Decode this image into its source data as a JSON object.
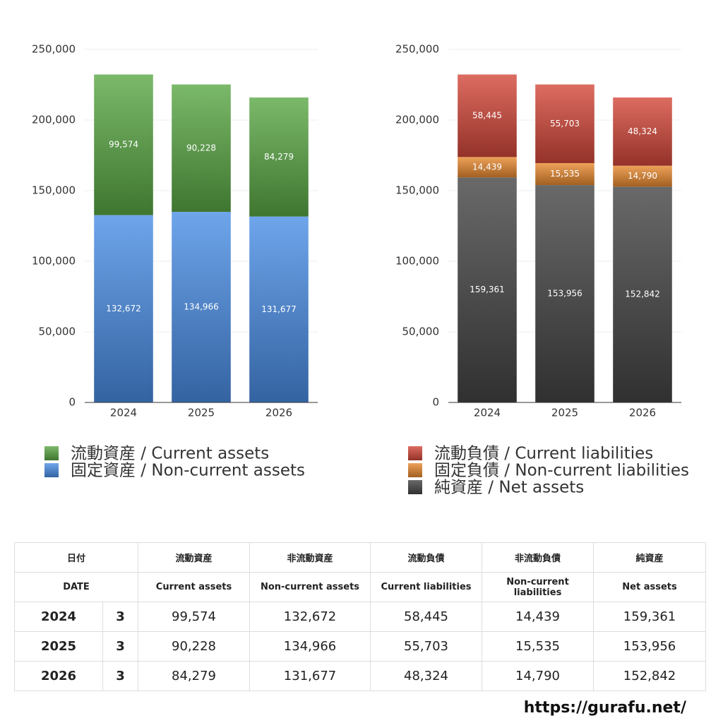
{
  "chart_data": [
    {
      "type": "bar",
      "stacked": true,
      "categories": [
        "2024",
        "2025",
        "2026"
      ],
      "series": [
        {
          "name": "流動資産 / Current assets",
          "color": "#5aa845",
          "values": [
            99574,
            90228,
            84279
          ],
          "value_labels": [
            "99,574",
            "90,228",
            "84,279"
          ]
        },
        {
          "name": "固定資産 / Non-current assets",
          "color": "#4a8ee6",
          "values": [
            132672,
            134966,
            131677
          ],
          "value_labels": [
            "132,672",
            "134,966",
            "131,677"
          ]
        }
      ],
      "ylim": [
        0,
        250000
      ],
      "yticks": [
        {
          "value": 0,
          "label": "0"
        },
        {
          "value": 50000,
          "label": "50,000"
        },
        {
          "value": 100000,
          "label": "100,000"
        },
        {
          "value": 150000,
          "label": "150,000"
        },
        {
          "value": 200000,
          "label": "200,000"
        },
        {
          "value": 250000,
          "label": "250,000"
        }
      ],
      "grid": true
    },
    {
      "type": "bar",
      "stacked": true,
      "categories": [
        "2024",
        "2025",
        "2026"
      ],
      "series": [
        {
          "name": "流動負債 / Current liabilities",
          "color": "#d4473a",
          "values": [
            58445,
            55703,
            48324
          ],
          "value_labels": [
            "58,445",
            "55,703",
            "48,324"
          ]
        },
        {
          "name": "固定負債 / Non-current liabilities",
          "color": "#e8892f",
          "values": [
            14439,
            15535,
            14790
          ],
          "value_labels": [
            "14,439",
            "15,535",
            "14,790"
          ]
        },
        {
          "name": "純資産 / Net assets",
          "color": "#444444",
          "values": [
            159361,
            153956,
            152842
          ],
          "value_labels": [
            "159,361",
            "153,956",
            "152,842"
          ]
        }
      ],
      "ylim": [
        0,
        250000
      ],
      "yticks": [
        {
          "value": 0,
          "label": "0"
        },
        {
          "value": 50000,
          "label": "50,000"
        },
        {
          "value": 100000,
          "label": "100,000"
        },
        {
          "value": 150000,
          "label": "150,000"
        },
        {
          "value": 200000,
          "label": "200,000"
        },
        {
          "value": 250000,
          "label": "250,000"
        }
      ],
      "grid": true
    }
  ],
  "table": {
    "header": [
      [
        "日付",
        "流動資産",
        "非流動資産",
        "流動負債",
        "非流動負債",
        "純資産"
      ],
      [
        "DATE",
        "Current assets",
        "Non-current assets",
        "Current liabilities",
        "Non-current liabilities",
        "Net assets"
      ]
    ],
    "rows": [
      [
        "2024",
        "3",
        "99,574",
        "132,672",
        "58,445",
        "14,439",
        "159,361"
      ],
      [
        "2025",
        "3",
        "90,228",
        "134,966",
        "55,703",
        "15,535",
        "153,956"
      ],
      [
        "2026",
        "3",
        "84,279",
        "131,677",
        "48,324",
        "14,790",
        "152,842"
      ]
    ]
  },
  "footer": "https://gurafu.net/"
}
